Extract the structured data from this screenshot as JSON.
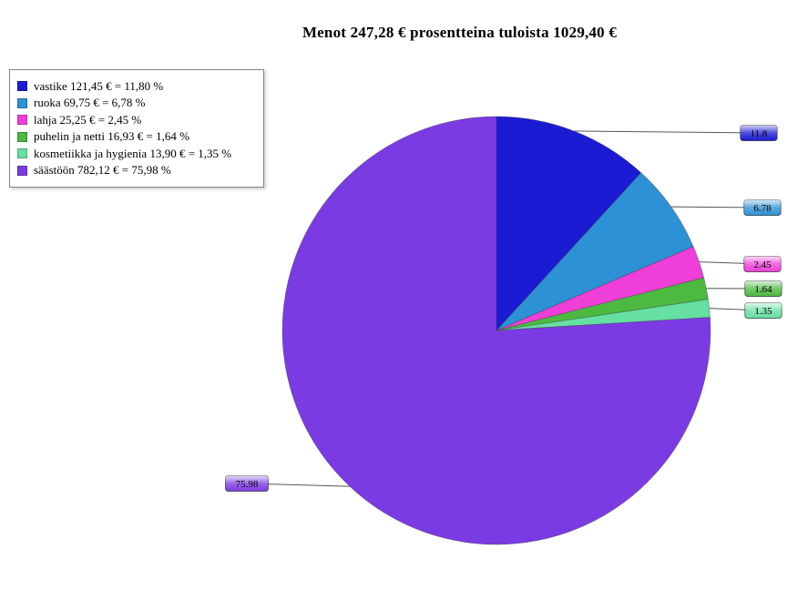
{
  "title": "Menot 247,28 € prosentteina tuloista 1029,40 €",
  "chart_data": {
    "type": "pie",
    "title": "Menot 247,28 € prosentteina tuloista 1029,40 €",
    "total_expenses_eur": "247,28 €",
    "total_income_eur": "1029,40 €",
    "start_angle": "top",
    "direction": "clockwise",
    "legend_position": "top-left",
    "background_color": "#ffffff",
    "slices": [
      {
        "name": "vastike",
        "amount_eur": 121.45,
        "percent": 11.8,
        "label": "11.8",
        "legend_label": "vastike 121,45 € = 11,80 %",
        "color": "#1b1bd3"
      },
      {
        "name": "ruoka",
        "amount_eur": 69.75,
        "percent": 6.78,
        "label": "6.78",
        "legend_label": "ruoka 69,75 € = 6,78 %",
        "color": "#2d91d5"
      },
      {
        "name": "lahja",
        "amount_eur": 25.25,
        "percent": 2.45,
        "label": "2.45",
        "legend_label": "lahja 25,25 € = 2,45 %",
        "color": "#ef3fd8"
      },
      {
        "name": "puhelin ja netti",
        "amount_eur": 16.93,
        "percent": 1.64,
        "label": "1.64",
        "legend_label": "puhelin ja netti 16,93 € = 1,64 %",
        "color": "#4cb940"
      },
      {
        "name": "kosmetiikka ja hygienia",
        "amount_eur": 13.9,
        "percent": 1.35,
        "label": "1.35",
        "legend_label": "kosmetiikka ja hygienia 13,90 € = 1,35 %",
        "color": "#65dfa2"
      },
      {
        "name": "säästöön",
        "amount_eur": 782.12,
        "percent": 75.98,
        "label": "75.98",
        "legend_label": "säästöön 782,12 € = 75,98 %",
        "color": "#7b3be2"
      }
    ]
  }
}
